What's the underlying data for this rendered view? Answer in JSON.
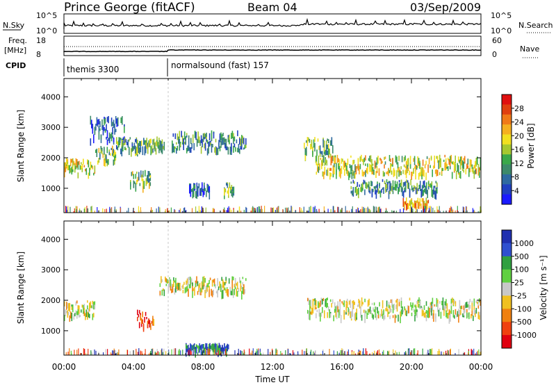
{
  "header": {
    "station": "Prince George (fitACF)",
    "beam": "Beam 04",
    "date": "03/Sep/2009"
  },
  "strip_labels": {
    "nsky": "N.Sky",
    "nsky_ticks": [
      "10^5",
      "10^0"
    ],
    "nsearch": "N.Search",
    "nsearch_ticks": [
      "10^5",
      "10^0"
    ],
    "freq": "Freq.",
    "freq_unit": "[MHz]",
    "freq_ticks": [
      "18",
      "8"
    ],
    "nave": "Nave",
    "nave_ticks": [
      "60",
      "0"
    ],
    "cpid": "CPID"
  },
  "cpid_segments": [
    {
      "label": "themis 3300",
      "start_hour": 0
    },
    {
      "label": "normalsound (fast) 157",
      "start_hour": 6
    }
  ],
  "chart_data": [
    {
      "type": "heatmap",
      "name": "power",
      "ylabel": "Slant Range [km]",
      "xlabel": "",
      "ylim": [
        200,
        4600
      ],
      "yticks": [
        "1000",
        "2000",
        "3000",
        "4000"
      ],
      "xlim_hours": [
        0,
        24
      ],
      "colorbar": {
        "label": "Power [dB]",
        "ticks": [
          "4",
          "8",
          "12",
          "16",
          "20",
          "24",
          "28"
        ],
        "colors": [
          "#1a1aff",
          "#2040c0",
          "#2f6aa0",
          "#3d8a6a",
          "#3aa84a",
          "#a6c830",
          "#f2e020",
          "#f5b020",
          "#f07a18",
          "#e04010",
          "#e01010"
        ]
      },
      "echo_bands": [
        {
          "t0": 0.0,
          "t1": 1.8,
          "r0": 1500,
          "r1": 2000,
          "level": 0.6
        },
        {
          "t0": 1.8,
          "t1": 3.0,
          "r0": 1900,
          "r1": 2400,
          "level": 0.45
        },
        {
          "t0": 1.5,
          "t1": 3.5,
          "r0": 2600,
          "r1": 3400,
          "level": 0.2
        },
        {
          "t0": 3.0,
          "t1": 4.5,
          "r0": 2300,
          "r1": 2700,
          "level": 0.35
        },
        {
          "t0": 4.5,
          "t1": 5.8,
          "r0": 2300,
          "r1": 2700,
          "level": 0.4
        },
        {
          "t0": 3.8,
          "t1": 5.0,
          "r0": 1100,
          "r1": 1600,
          "level": 0.45
        },
        {
          "t0": 6.2,
          "t1": 10.5,
          "r0": 2300,
          "r1": 2900,
          "level": 0.3
        },
        {
          "t0": 7.2,
          "t1": 8.4,
          "r0": 900,
          "r1": 1200,
          "level": 0.2
        },
        {
          "t0": 9.2,
          "t1": 9.8,
          "r0": 900,
          "r1": 1200,
          "level": 0.35
        },
        {
          "t0": 13.8,
          "t1": 15.5,
          "r0": 2000,
          "r1": 2700,
          "level": 0.4
        },
        {
          "t0": 14.5,
          "t1": 24.0,
          "r0": 1500,
          "r1": 2100,
          "level": 0.55
        },
        {
          "t0": 16.5,
          "t1": 21.5,
          "r0": 900,
          "r1": 1300,
          "level": 0.3
        },
        {
          "t0": 19.5,
          "t1": 21.0,
          "r0": 500,
          "r1": 700,
          "level": 0.7
        }
      ]
    },
    {
      "type": "heatmap",
      "name": "velocity",
      "ylabel": "Slant Range [km]",
      "xlabel": "Time UT",
      "ylim": [
        200,
        4600
      ],
      "yticks": [
        "1000",
        "2000",
        "3000",
        "4000"
      ],
      "xlim_hours": [
        0,
        24
      ],
      "xticks": [
        "00:00",
        "04:00",
        "08:00",
        "12:00",
        "16:00",
        "20:00",
        "00:00"
      ],
      "colorbar": {
        "label": "Velocity [m s⁻¹]",
        "ticks": [
          "1000",
          "500",
          "100",
          "25",
          "-25",
          "-100",
          "-500",
          "-1000"
        ],
        "colors": [
          "#2030b0",
          "#2f50d0",
          "#30a040",
          "#60d040",
          "#c8c8c8",
          "#f0c020",
          "#f08010",
          "#f04010",
          "#e00010"
        ]
      },
      "echo_bands": [
        {
          "t0": 0.0,
          "t1": 1.8,
          "r0": 1500,
          "r1": 2000,
          "level": 0.5
        },
        {
          "t0": 4.2,
          "t1": 5.2,
          "r0": 1200,
          "r1": 1700,
          "level": 0.9
        },
        {
          "t0": 5.5,
          "t1": 10.5,
          "r0": 2300,
          "r1": 2800,
          "level": 0.5
        },
        {
          "t0": 14.0,
          "t1": 24.0,
          "r0": 1500,
          "r1": 2100,
          "level": 0.5
        },
        {
          "t0": 7.0,
          "t1": 9.5,
          "r0": 400,
          "r1": 600,
          "level": 0.15
        }
      ]
    }
  ]
}
